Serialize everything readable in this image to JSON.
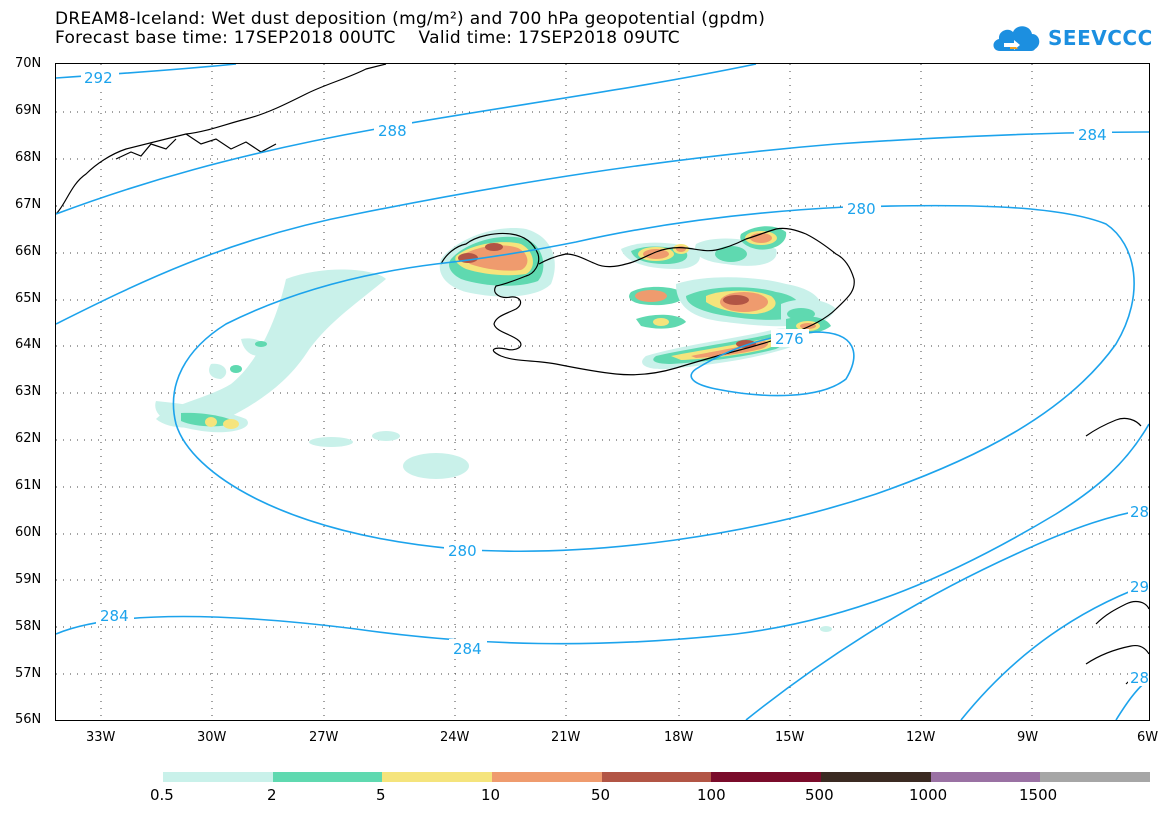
{
  "title": {
    "line1": "DREAM8-Iceland: Wet dust deposition (mg/m²) and 700 hPa geopotential (gpdm)",
    "line2": "Forecast base time: 17SEP2018 00UTC    Valid time: 17SEP2018 09UTC"
  },
  "logo": {
    "text": "SEEVCCC",
    "icon": "cloud-icon"
  },
  "map": {
    "latitude_labels": [
      "70N",
      "69N",
      "68N",
      "67N",
      "66N",
      "65N",
      "64N",
      "63N",
      "62N",
      "61N",
      "60N",
      "59N",
      "58N",
      "57N",
      "56N"
    ],
    "longitude_labels": [
      "33W",
      "30W",
      "27W",
      "24W",
      "21W",
      "18W",
      "15W",
      "12W",
      "9W",
      "6W"
    ],
    "contour_labels": [
      "292",
      "288",
      "284",
      "280",
      "280",
      "276",
      "284",
      "284",
      "28",
      "29",
      "28"
    ],
    "contour_color": "#1ca3ec",
    "coastline_color": "#000000",
    "grid": "dotted"
  },
  "legend": {
    "labels": [
      "0.5",
      "2",
      "5",
      "10",
      "50",
      "100",
      "500",
      "1000",
      "1500"
    ],
    "colors": [
      "#c9f1ea",
      "#5fd9b0",
      "#f5e47c",
      "#ef9b6e",
      "#b25545",
      "#7a0b2a",
      "#3b2a22",
      "#9a71a3",
      "#a6a6a6"
    ]
  }
}
